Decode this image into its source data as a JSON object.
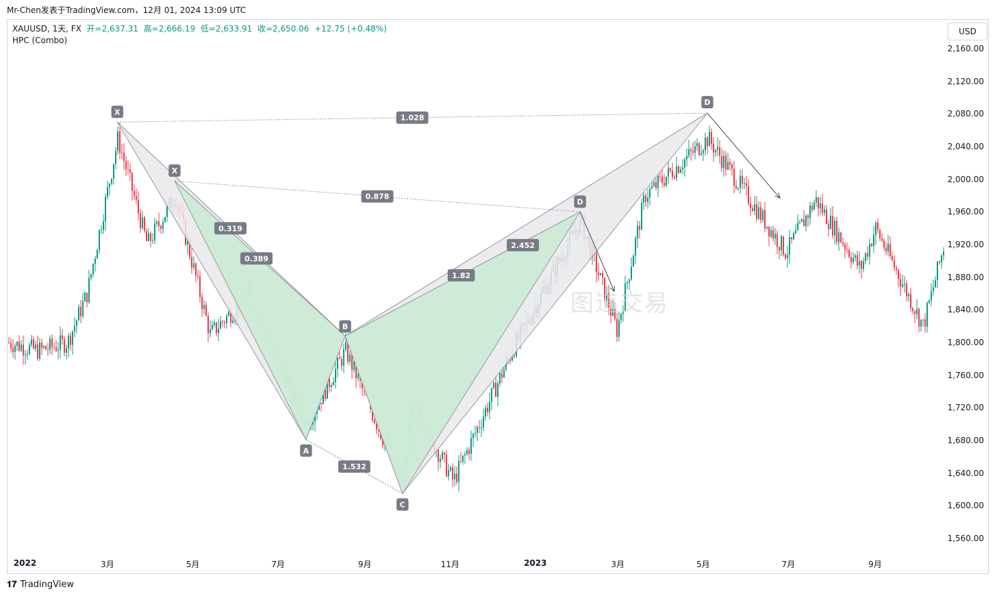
{
  "header": {
    "publish_line": "Mr-Chen发表于TradingView.com，12月 01, 2024 13:09 UTC"
  },
  "legend": {
    "symbol": "XAUUSD, 1天, FX",
    "open_label": "开=2,637.31",
    "high_label": "高=2,666.19",
    "low_label": "低=2,633.91",
    "close_label": "收=2,650.06",
    "change": "+12.75 (+0.48%)",
    "indicator": "HPC (Combo)"
  },
  "currency_button": "USD",
  "price_axis": [
    "2,160.00",
    "2,120.00",
    "2,080.00",
    "2,040.00",
    "2,000.00",
    "1,960.00",
    "1,920.00",
    "1,880.00",
    "1,840.00",
    "1,800.00",
    "1,760.00",
    "1,720.00",
    "1,680.00",
    "1,640.00",
    "1,600.00",
    "1,560.00"
  ],
  "time_axis": [
    {
      "label": "2022",
      "bold": true
    },
    {
      "label": "3月",
      "bold": false
    },
    {
      "label": "5月",
      "bold": false
    },
    {
      "label": "7月",
      "bold": false
    },
    {
      "label": "9月",
      "bold": false
    },
    {
      "label": "11月",
      "bold": false
    },
    {
      "label": "2023",
      "bold": true
    },
    {
      "label": "3月",
      "bold": false
    },
    {
      "label": "5月",
      "bold": false
    },
    {
      "label": "7月",
      "bold": false
    },
    {
      "label": "9月",
      "bold": false
    }
  ],
  "pattern_points": {
    "x1": "X",
    "x2": "X",
    "a": "A",
    "b": "B",
    "c": "C",
    "d1": "D",
    "d2": "D"
  },
  "ratios": {
    "r1": "1.028",
    "r2": "0.878",
    "r3": "0.319",
    "r4": "0.389",
    "r5": "2.452",
    "r6": "1.82",
    "r7": "1.532"
  },
  "watermark": "图道交易",
  "brand": "TradingView",
  "colors": {
    "up": "#089981",
    "down": "#f23645",
    "pattern_fill": "#c8ebd2",
    "pattern_grey": "#e9e9ec",
    "label_bg": "#787b86"
  },
  "chart_data": {
    "type": "candlestick",
    "symbol": "XAUUSD",
    "interval": "1天",
    "ylim": [
      1540,
      2180
    ],
    "pivots": [
      {
        "label": "X",
        "date": "2022-03-08",
        "price": 2070
      },
      {
        "label": "X",
        "date": "2022-04-18",
        "price": 1998
      },
      {
        "label": "A",
        "date": "2022-07-21",
        "price": 1681
      },
      {
        "label": "B",
        "date": "2022-08-18",
        "price": 1808
      },
      {
        "label": "C",
        "date": "2022-09-28",
        "price": 1615
      },
      {
        "label": "D",
        "date": "2023-02-02",
        "price": 1960
      },
      {
        "label": "D",
        "date": "2023-05-04",
        "price": 2081
      }
    ],
    "close_path": [
      {
        "date": "2021-12-20",
        "close": 1800
      },
      {
        "date": "2022-01-10",
        "close": 1790
      },
      {
        "date": "2022-01-31",
        "close": 1800
      },
      {
        "date": "2022-02-14",
        "close": 1860
      },
      {
        "date": "2022-03-08",
        "close": 2050
      },
      {
        "date": "2022-03-29",
        "close": 1920
      },
      {
        "date": "2022-04-18",
        "close": 1980
      },
      {
        "date": "2022-05-13",
        "close": 1810
      },
      {
        "date": "2022-06-10",
        "close": 1860
      },
      {
        "date": "2022-07-21",
        "close": 1700
      },
      {
        "date": "2022-08-18",
        "close": 1790
      },
      {
        "date": "2022-09-28",
        "close": 1625
      },
      {
        "date": "2022-10-05",
        "close": 1725
      },
      {
        "date": "2022-11-03",
        "close": 1630
      },
      {
        "date": "2022-12-15",
        "close": 1790
      },
      {
        "date": "2023-02-02",
        "close": 1950
      },
      {
        "date": "2023-02-28",
        "close": 1815
      },
      {
        "date": "2023-03-20",
        "close": 1980
      },
      {
        "date": "2023-05-04",
        "close": 2050
      },
      {
        "date": "2023-06-29",
        "close": 1910
      },
      {
        "date": "2023-07-20",
        "close": 1975
      },
      {
        "date": "2023-08-21",
        "close": 1890
      },
      {
        "date": "2023-09-01",
        "close": 1940
      },
      {
        "date": "2023-10-05",
        "close": 1820
      },
      {
        "date": "2023-10-20",
        "close": 1920
      }
    ]
  }
}
